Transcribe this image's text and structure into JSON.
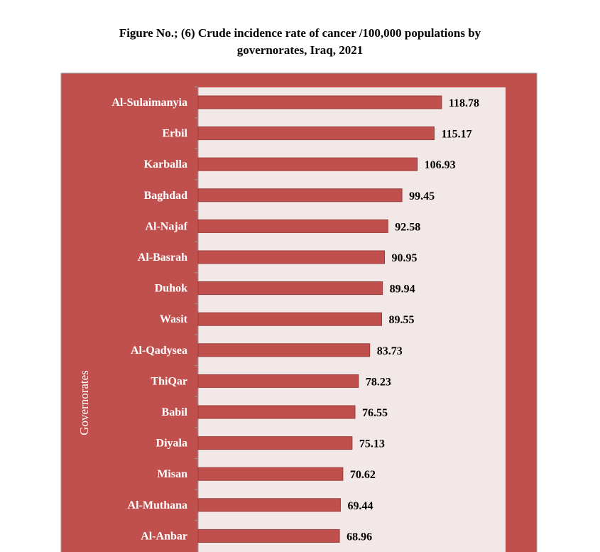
{
  "chart_data": {
    "type": "bar",
    "orientation": "horizontal",
    "title_line1": "Figure No.; (6) Crude incidence rate of cancer /100,000 populations by",
    "title_line2": "governorates, Iraq, 2021",
    "xlabel": "",
    "ylabel": "Governorates",
    "xlim": [
      0,
      150
    ],
    "grid": false,
    "legend": "none",
    "categories": [
      "Al-Sulaimanyia",
      "Erbil",
      "Karballa",
      "Baghdad",
      "Al-Najaf",
      "Al-Basrah",
      "Duhok",
      "Wasit",
      "Al-Qadysea",
      "ThiQar",
      "Babil",
      "Diyala",
      "Misan",
      "Al-Muthana",
      "Al-Anbar"
    ],
    "values": [
      118.78,
      115.17,
      106.93,
      99.45,
      92.58,
      90.95,
      89.94,
      89.55,
      83.73,
      78.23,
      76.55,
      75.13,
      70.62,
      69.44,
      68.96
    ],
    "value_labels": [
      "118.78",
      "115.17",
      "106.93",
      "99.45",
      "92.58",
      "90.95",
      "89.94",
      "89.55",
      "83.73",
      "78.23",
      "76.55",
      "75.13",
      "70.62",
      "69.44",
      "68.96"
    ],
    "colors": {
      "bar": "#C0504D",
      "bar_edge": "#9B3B38",
      "frame_bg": "#C0504D",
      "plot_bg": "#F2E8E8"
    }
  }
}
